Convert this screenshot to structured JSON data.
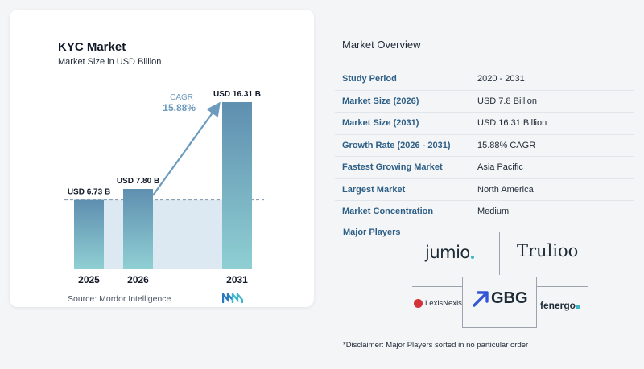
{
  "chart_data": {
    "type": "bar",
    "title": "KYC Market",
    "subtitle": "Market Size in USD Billion",
    "categories": [
      "2025",
      "2026",
      "2031"
    ],
    "values": [
      6.73,
      7.8,
      16.31
    ],
    "value_labels": [
      "USD 6.73 B",
      "USD 7.80 B",
      "USD 16.31 B"
    ],
    "cagr_label": "CAGR",
    "cagr_value": "15.88%",
    "colors": {
      "bar_top": "#5f8fb0",
      "bar_bottom": "#8fcfd3",
      "shade": "#dce8f2",
      "arrow": "#6d9bbd",
      "cagr": "#6d9bbd"
    },
    "ylim": [
      0,
      16.31
    ]
  },
  "source": "Source:  Mordor Intelligence",
  "overview": {
    "title": "Market Overview",
    "rows": [
      {
        "label": "Study Period",
        "value": "2020 - 2031"
      },
      {
        "label": "Market Size (2026)",
        "value": "USD 7.8 Billion"
      },
      {
        "label": "Market Size (2031)",
        "value": "USD 16.31 Billion"
      },
      {
        "label": "Growth Rate (2026 - 2031)",
        "value": "15.88% CAGR"
      },
      {
        "label": "Fastest Growing Market",
        "value": "Asia Pacific"
      },
      {
        "label": "Largest Market",
        "value": "North America"
      },
      {
        "label": "Market Concentration",
        "value": "Medium"
      }
    ]
  },
  "players": {
    "label": "Major Players",
    "names": [
      "jumio",
      "Trulioo",
      "LexisNexis",
      "GBG",
      "fenergo"
    ]
  },
  "disclaimer": "*Disclaimer: Major Players sorted in no particular order"
}
